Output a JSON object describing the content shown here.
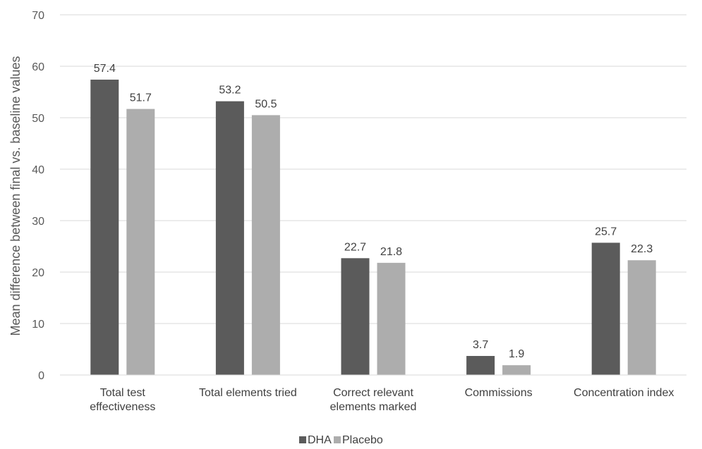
{
  "chart_data": {
    "type": "bar",
    "title": "",
    "xlabel": "",
    "ylabel": "Mean difference between final vs. baseline values",
    "ylim": [
      0,
      70
    ],
    "yticks": [
      0,
      10,
      20,
      30,
      40,
      50,
      60,
      70
    ],
    "grid": true,
    "legend_position": "bottom",
    "categories": [
      [
        "Total test",
        "effectiveness"
      ],
      [
        "Total elements tried"
      ],
      [
        "Correct relevant",
        "elements marked"
      ],
      [
        "Commissions"
      ],
      [
        "Concentration index"
      ]
    ],
    "series": [
      {
        "name": "DHA",
        "color": "#5b5b5b",
        "values": [
          57.4,
          53.2,
          22.7,
          3.7,
          25.7
        ]
      },
      {
        "name": "Placebo",
        "color": "#adadad",
        "values": [
          51.7,
          50.5,
          21.8,
          1.9,
          22.3
        ]
      }
    ]
  }
}
